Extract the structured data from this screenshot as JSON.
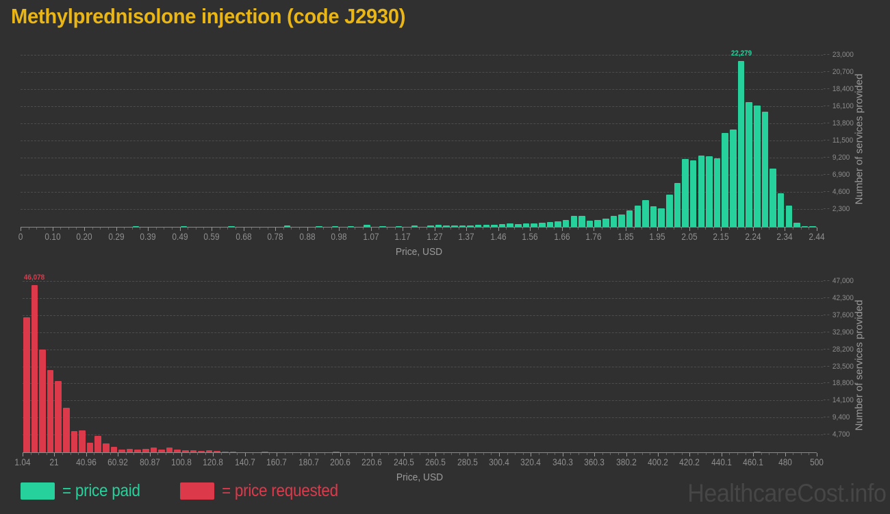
{
  "header": {
    "title": "Methylprednisolone injection (code J2930)"
  },
  "colors": {
    "background": "#303031",
    "title": "#e9b616",
    "paid": "#26d19c",
    "requested": "#dc3a4b",
    "axis_text": "#8f8f8f",
    "grid": "#4d4d4d",
    "watermark": "#464646"
  },
  "legend": {
    "paid_label": "= price paid",
    "requested_label": "= price requested"
  },
  "watermark": "HealthcareCost.info",
  "chart_data": [
    {
      "type": "bar",
      "name": "price paid histogram",
      "xlabel": "Price, USD",
      "ylabel": "Number of services provided",
      "legend_position": "bottom",
      "grid": true,
      "ylim": [
        0,
        23000
      ],
      "grid_step": 2300,
      "y_tick_labels": [
        "23,000",
        "20,700",
        "18,400",
        "16,100",
        "13,800",
        "11,500",
        "9,200",
        "6,900",
        "4,600",
        "2,300"
      ],
      "x_tick_labels": [
        "0",
        "0.10",
        "0.20",
        "0.29",
        "0.39",
        "0.49",
        "0.59",
        "0.68",
        "0.78",
        "0.88",
        "0.98",
        "1.07",
        "1.17",
        "1.27",
        "1.37",
        "1.46",
        "1.56",
        "1.66",
        "1.76",
        "1.85",
        "1.95",
        "2.05",
        "2.15",
        "2.24",
        "2.34",
        "2.44"
      ],
      "bin_start": 0,
      "bin_width": 0.0244,
      "peak_label": "22,279",
      "values": [
        0,
        0,
        0,
        0,
        0,
        0,
        0,
        0,
        0,
        0,
        0,
        0,
        0,
        0,
        60,
        0,
        0,
        0,
        0,
        0,
        60,
        0,
        0,
        0,
        0,
        0,
        50,
        0,
        0,
        0,
        0,
        0,
        0,
        150,
        0,
        0,
        0,
        130,
        0,
        120,
        0,
        130,
        0,
        240,
        0,
        120,
        0,
        120,
        0,
        140,
        0,
        150,
        260,
        170,
        200,
        170,
        230,
        260,
        300,
        320,
        380,
        450,
        350,
        420,
        480,
        550,
        650,
        750,
        900,
        1450,
        1500,
        800,
        900,
        1100,
        1500,
        1650,
        2250,
        2850,
        3550,
        2800,
        2450,
        4300,
        5900,
        9150,
        8950,
        9600,
        9450,
        9200,
        12600,
        13050,
        22279,
        16700,
        16300,
        15500,
        7850,
        4500,
        2850,
        550,
        120,
        80
      ]
    },
    {
      "type": "bar",
      "name": "price requested histogram",
      "xlabel": "Price, USD",
      "ylabel": "Number of services provided",
      "legend_position": "bottom",
      "grid": true,
      "ylim": [
        0,
        47000
      ],
      "grid_step": 4700,
      "y_tick_labels": [
        "47,000",
        "42,300",
        "37,600",
        "32,900",
        "28,200",
        "23,500",
        "18,800",
        "14,100",
        "9,400",
        "4,700"
      ],
      "x_tick_labels": [
        "1.04",
        "21",
        "40.96",
        "60.92",
        "80.87",
        "100.8",
        "120.8",
        "140.7",
        "160.7",
        "180.7",
        "200.6",
        "220.6",
        "240.5",
        "260.5",
        "280.5",
        "300.4",
        "320.4",
        "340.3",
        "360.3",
        "380.2",
        "400.2",
        "420.2",
        "440.1",
        "460.1",
        "480",
        "500"
      ],
      "bin_start": 1.04,
      "bin_width": 4.99,
      "peak_label": "46,078",
      "values": [
        37200,
        46078,
        28250,
        22700,
        19550,
        12250,
        5900,
        6050,
        2650,
        4600,
        2500,
        1500,
        800,
        900,
        750,
        900,
        1400,
        700,
        1300,
        800,
        600,
        500,
        450,
        500,
        300,
        150,
        100,
        0,
        0,
        0,
        50,
        0,
        0,
        0,
        0,
        0,
        0,
        0,
        0,
        250,
        0,
        0,
        0,
        0,
        0,
        0,
        0,
        0,
        0,
        0,
        0,
        0,
        0,
        0,
        0,
        0,
        0,
        0,
        0,
        0,
        0,
        0,
        0,
        0,
        0,
        0,
        0,
        0,
        0,
        0,
        0,
        0,
        0,
        0,
        0,
        0,
        0,
        0,
        0,
        0,
        0,
        0,
        0,
        0,
        0,
        0,
        0,
        0,
        0,
        0,
        0,
        0,
        250,
        0,
        0,
        0,
        0,
        0,
        0,
        0
      ]
    }
  ]
}
